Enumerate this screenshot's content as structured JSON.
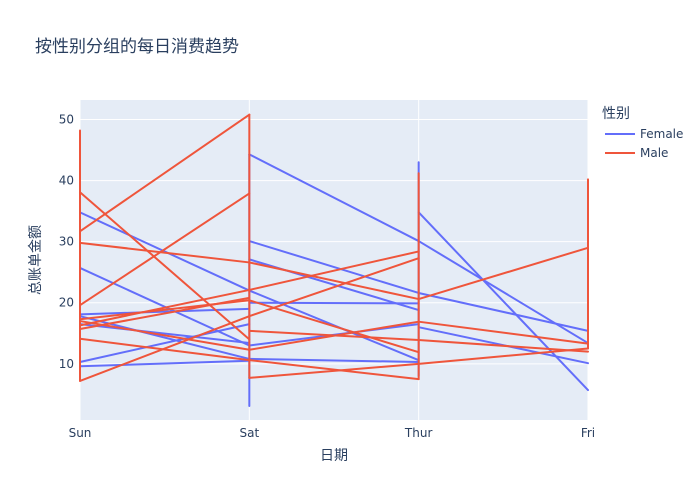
{
  "chart_data": {
    "type": "line",
    "title": "按性别分组的每日消费趋势",
    "xlabel": "日期",
    "ylabel": "总账单金额",
    "categories": [
      "Sun",
      "Sat",
      "Thur",
      "Fri"
    ],
    "ylim": [
      0.8,
      53.2
    ],
    "yticks": [
      10,
      20,
      30,
      40,
      50
    ],
    "grid": true,
    "legend": {
      "title": "性别",
      "position": "top-right"
    },
    "series": [
      {
        "name": "Female",
        "color": "#636efa",
        "segments": [
          {
            "x": "Sun",
            "y": 34.8
          },
          {
            "x": "Sat",
            "y": 22.0
          },
          {
            "x": "Sun",
            "y": 25.7
          },
          {
            "x": "Sat",
            "y": 13.0
          },
          {
            "x": "Sun",
            "y": 17.8
          },
          {
            "x": "Sat",
            "y": 10.8
          },
          {
            "x": "Sun",
            "y": 10.3
          },
          {
            "x": "Sat",
            "y": 16.5
          },
          {
            "x": "Sun",
            "y": 9.6
          },
          {
            "x": "Sat",
            "y": 10.5
          },
          {
            "x": "Sun",
            "y": 18.1
          },
          {
            "x": "Sat",
            "y": 19.0
          },
          {
            "x": "Sun",
            "y": 16.5
          },
          {
            "x": "Sat",
            "y": 13.4
          },
          {
            "x": "Sat",
            "y": 3.1
          },
          {
            "x": "Sat",
            "y": 44.3
          },
          {
            "x": "Sat",
            "y": 44.3
          },
          {
            "x": "Thur",
            "y": 30.1
          },
          {
            "x": "Thur",
            "y": 30.1
          },
          {
            "x": "Fri",
            "y": 13.4
          },
          {
            "x": "Sat",
            "y": 30.1
          },
          {
            "x": "Thur",
            "y": 21.6
          },
          {
            "x": "Thur",
            "y": 21.6
          },
          {
            "x": "Fri",
            "y": 15.4
          },
          {
            "x": "Sat",
            "y": 27.1
          },
          {
            "x": "Thur",
            "y": 18.8
          },
          {
            "x": "Sat",
            "y": 22.0
          },
          {
            "x": "Thur",
            "y": 10.6
          },
          {
            "x": "Sat",
            "y": 13.0
          },
          {
            "x": "Thur",
            "y": 16.5
          },
          {
            "x": "Sat",
            "y": 10.8
          },
          {
            "x": "Thur",
            "y": 10.3
          },
          {
            "x": "Sat",
            "y": 20.0
          },
          {
            "x": "Thur",
            "y": 19.9
          },
          {
            "x": "Thur",
            "y": 43.0
          },
          {
            "x": "Thur",
            "y": 8.0
          },
          {
            "x": "Thur",
            "y": 34.8
          },
          {
            "x": "Fri",
            "y": 5.7
          },
          {
            "x": "Thur",
            "y": 16.0
          },
          {
            "x": "Fri",
            "y": 10.1
          }
        ]
      },
      {
        "name": "Male",
        "color": "#ef553b",
        "segments": [
          {
            "x": "Sun",
            "y": 48.2
          },
          {
            "x": "Sun",
            "y": 7.2
          },
          {
            "x": "Sun",
            "y": 38.1
          },
          {
            "x": "Sat",
            "y": 14.0
          },
          {
            "x": "Sun",
            "y": 31.7
          },
          {
            "x": "Sat",
            "y": 50.8
          },
          {
            "x": "Sun",
            "y": 29.8
          },
          {
            "x": "Sat",
            "y": 26.6
          },
          {
            "x": "Sun",
            "y": 19.6
          },
          {
            "x": "Sat",
            "y": 37.9
          },
          {
            "x": "Sun",
            "y": 17.3
          },
          {
            "x": "Sat",
            "y": 20.4
          },
          {
            "x": "Sun",
            "y": 16.3
          },
          {
            "x": "Sat",
            "y": 22.1
          },
          {
            "x": "Sun",
            "y": 15.7
          },
          {
            "x": "Sat",
            "y": 20.8
          },
          {
            "x": "Sun",
            "y": 14.1
          },
          {
            "x": "Sat",
            "y": 10.6
          },
          {
            "x": "Sun",
            "y": 7.2
          },
          {
            "x": "Sat",
            "y": 17.8
          },
          {
            "x": "Sun",
            "y": 17.0
          },
          {
            "x": "Sat",
            "y": 12.3
          },
          {
            "x": "Sat",
            "y": 50.8
          },
          {
            "x": "Sat",
            "y": 7.7
          },
          {
            "x": "Sat",
            "y": 26.6
          },
          {
            "x": "Thur",
            "y": 20.6
          },
          {
            "x": "Sat",
            "y": 22.1
          },
          {
            "x": "Thur",
            "y": 28.4
          },
          {
            "x": "Sat",
            "y": 17.8
          },
          {
            "x": "Thur",
            "y": 27.3
          },
          {
            "x": "Sat",
            "y": 15.4
          },
          {
            "x": "Thur",
            "y": 13.9
          },
          {
            "x": "Sat",
            "y": 20.4
          },
          {
            "x": "Thur",
            "y": 11.9
          },
          {
            "x": "Sat",
            "y": 10.6
          },
          {
            "x": "Thur",
            "y": 7.5
          },
          {
            "x": "Sat",
            "y": 7.7
          },
          {
            "x": "Thur",
            "y": 10.0
          },
          {
            "x": "Sat",
            "y": 12.3
          },
          {
            "x": "Thur",
            "y": 16.9
          },
          {
            "x": "Thur",
            "y": 41.2
          },
          {
            "x": "Thur",
            "y": 7.5
          },
          {
            "x": "Thur",
            "y": 20.6
          },
          {
            "x": "Fri",
            "y": 29.0
          },
          {
            "x": "Thur",
            "y": 10.0
          },
          {
            "x": "Fri",
            "y": 12.5
          },
          {
            "x": "Thur",
            "y": 16.9
          },
          {
            "x": "Fri",
            "y": 13.3
          },
          {
            "x": "Thur",
            "y": 13.9
          },
          {
            "x": "Fri",
            "y": 12.0
          },
          {
            "x": "Fri",
            "y": 40.2
          },
          {
            "x": "Fri",
            "y": 12.5
          }
        ]
      }
    ]
  }
}
